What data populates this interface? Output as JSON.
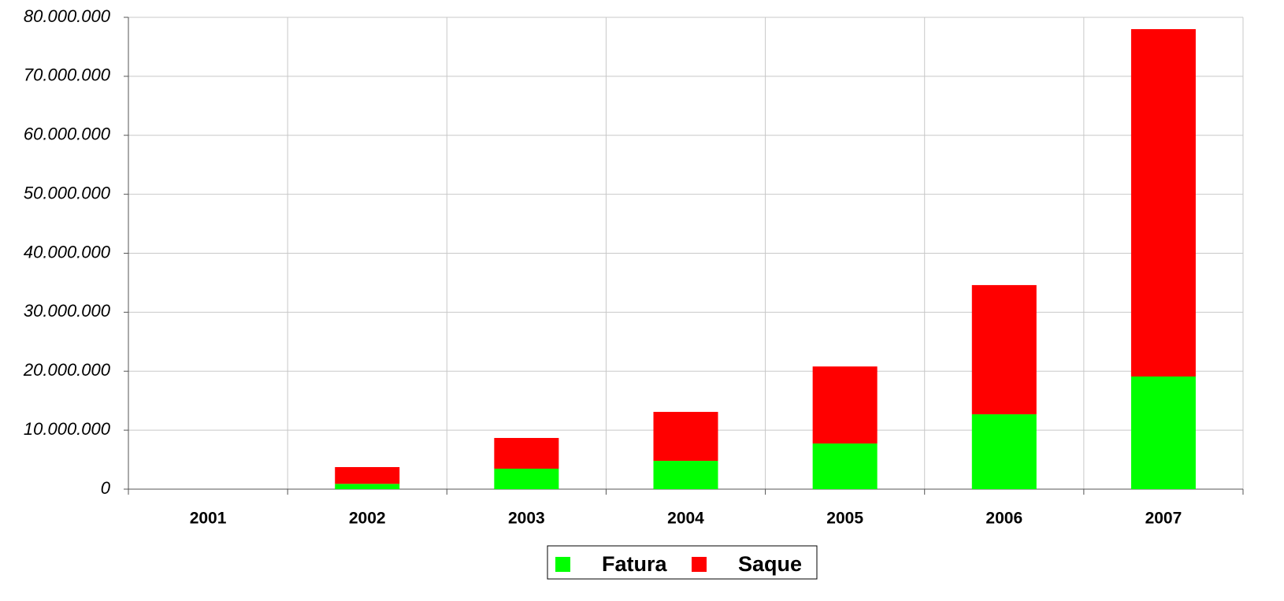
{
  "chart_data": {
    "type": "stacked_bar",
    "categories": [
      "2001",
      "2002",
      "2003",
      "2004",
      "2005",
      "2006",
      "2007"
    ],
    "series": [
      {
        "name": "Fatura",
        "color": "#00ff00",
        "values": [
          0,
          900000,
          3470000,
          4800000,
          7740000,
          12700000,
          19100000
        ]
      },
      {
        "name": "Saque",
        "color": "#ff0000",
        "values": [
          0,
          2840000,
          5210000,
          8300000,
          13060000,
          21900000,
          58900000
        ]
      }
    ],
    "ylim": [
      0,
      80000000
    ],
    "yticks": [
      0,
      {
        "value": 10000000,
        "label": "10.000.000"
      },
      {
        "value": 20000000,
        "label": "20.000.000"
      },
      {
        "value": 30000000,
        "label": "30.000.000"
      },
      {
        "value": 40000000,
        "label": "40.000.000"
      },
      {
        "value": 50000000,
        "label": "50.000.000"
      },
      {
        "value": 60000000,
        "label": "60.000.000"
      },
      {
        "value": 70000000,
        "label": "70.000.000"
      },
      {
        "value": 80000000,
        "label": "80.000.000"
      }
    ],
    "grid": true,
    "legend": "bottom"
  }
}
